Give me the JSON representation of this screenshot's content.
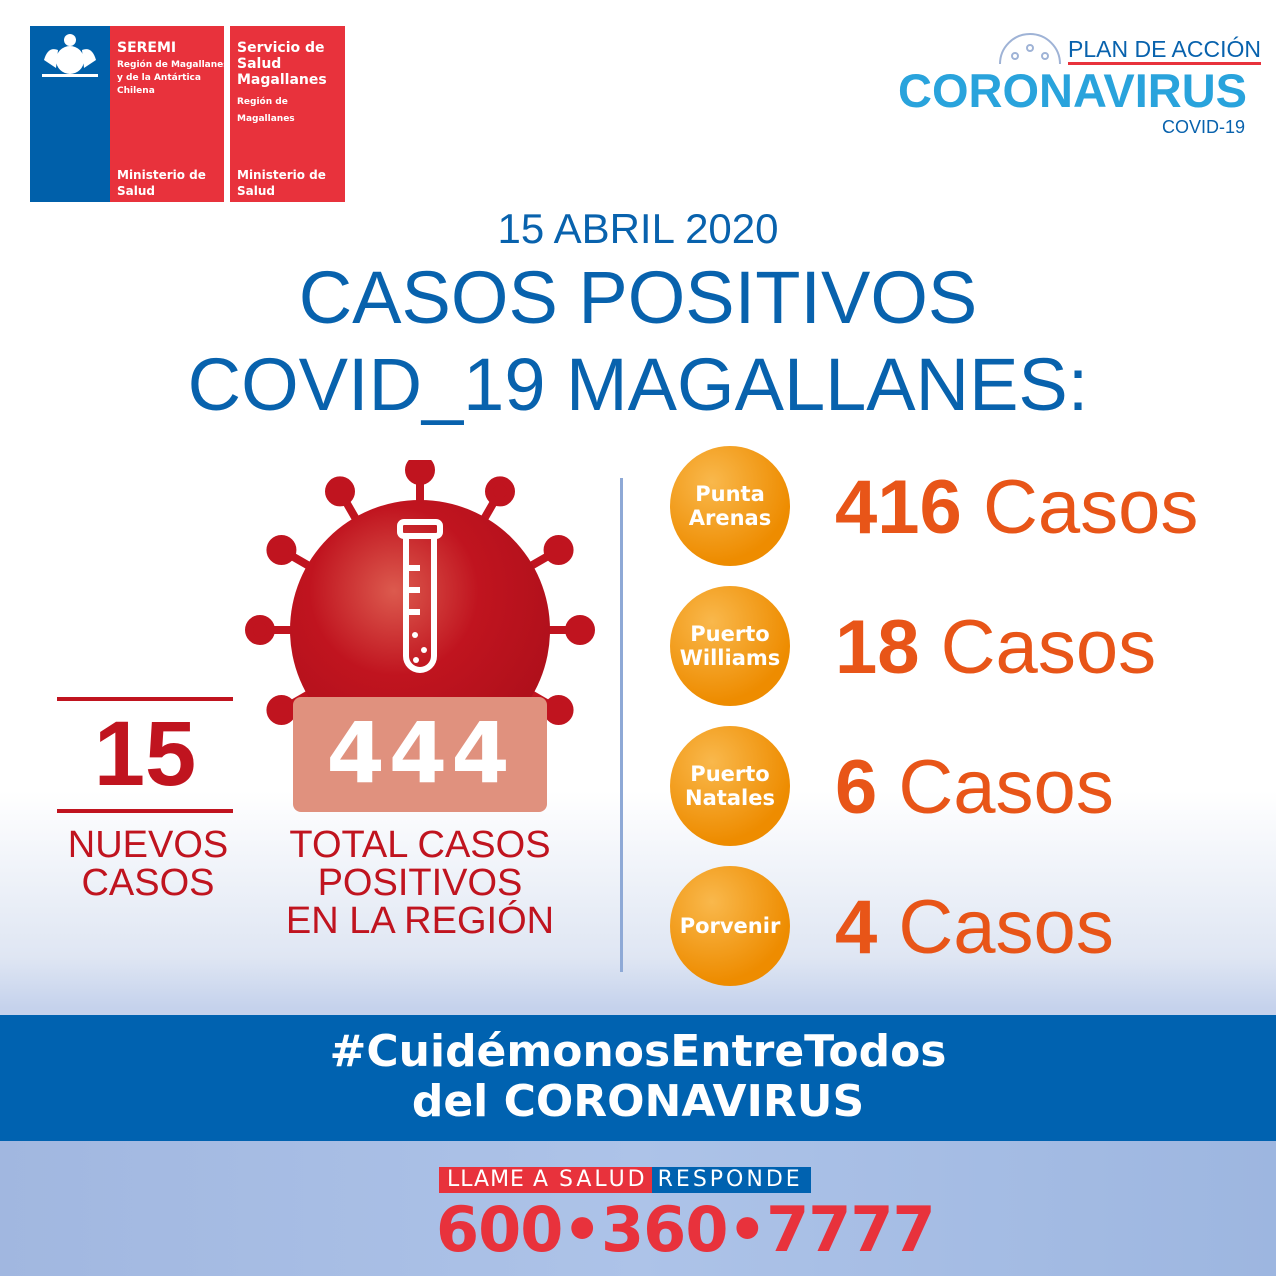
{
  "logos": {
    "seremi": {
      "title": "SEREMI",
      "region": [
        "Región de Magallanes",
        "y de la Antártica",
        "Chilena"
      ],
      "ministry": [
        "Ministerio de",
        "Salud"
      ]
    },
    "servicio": {
      "title": [
        "Servicio de",
        "Salud",
        "Magallanes"
      ],
      "region": [
        "Región de",
        "Magallanes"
      ],
      "ministry": [
        "Ministerio de",
        "Salud"
      ]
    },
    "campaign": {
      "plan": "PLAN DE ACCIÓN",
      "name": "CORONAVIRUS",
      "sub": "COVID-19"
    }
  },
  "header": {
    "date": "15 ABRIL 2020",
    "title_line1": "CASOS POSITIVOS",
    "title_line2": "COVID_19 MAGALLANES:"
  },
  "summary": {
    "new_cases": "15",
    "new_cases_label": [
      "NUEVOS",
      "CASOS"
    ],
    "total_cases": "444",
    "total_label": [
      "TOTAL CASOS",
      "POSITIVOS",
      "EN LA REGIÓN"
    ]
  },
  "localities": [
    {
      "name": [
        "Punta",
        "Arenas"
      ],
      "count": "416",
      "unit": "Casos"
    },
    {
      "name": [
        "Puerto",
        "Williams"
      ],
      "count": "18",
      "unit": "Casos"
    },
    {
      "name": [
        "Puerto",
        "Natales"
      ],
      "count": "6",
      "unit": "Casos"
    },
    {
      "name": [
        "Porvenir"
      ],
      "count": "4",
      "unit": "Casos"
    }
  ],
  "banner": {
    "line1": "#CuidémonosEntreTodos",
    "line2": "del CORONAVIRUS"
  },
  "footer": {
    "llame": "LLAME A",
    "salud": "SALUD",
    "responde": "RESPONDE",
    "phone": "600•360•7777"
  },
  "colors": {
    "blue": "#0062b0",
    "red": "#c0141f",
    "orange": "#ee8c00",
    "cases_text": "#e85518",
    "logo_red": "#e8323c"
  }
}
